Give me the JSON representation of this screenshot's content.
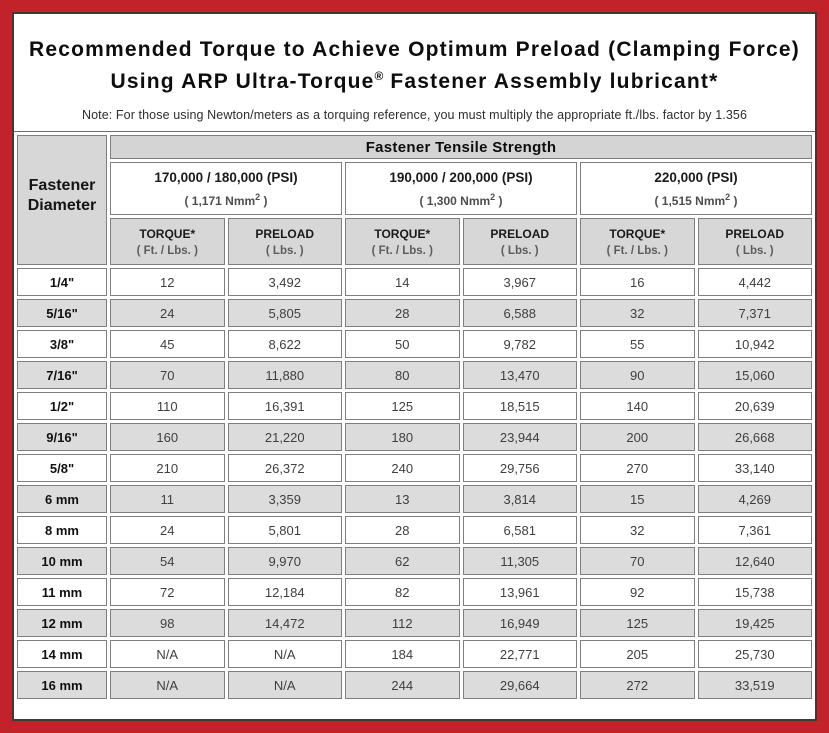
{
  "title": {
    "line1": "Recommended Torque to Achieve Optimum Preload (Clamping Force)",
    "line2_pre": "Using ARP Ultra-Torque",
    "line2_sup": "®",
    "line2_post": " Fastener Assembly lubricant*",
    "note": "Note: For those using Newton/meters as a torquing reference, you must multiply the appropriate ft./lbs. factor by 1.356"
  },
  "table": {
    "corner_label": "Fastener Diameter",
    "group_header": "Fastener Tensile Strength",
    "strength_columns": [
      {
        "psi": "170,000 / 180,000 (PSI)",
        "nmm_pre": "( 1,171 Nmm",
        "nmm_sup": "2",
        "nmm_post": " )"
      },
      {
        "psi": "190,000 / 200,000 (PSI)",
        "nmm_pre": "( 1,300 Nmm",
        "nmm_sup": "2",
        "nmm_post": " )"
      },
      {
        "psi": "220,000 (PSI)",
        "nmm_pre": "( 1,515 Nmm",
        "nmm_sup": "2",
        "nmm_post": " )"
      }
    ],
    "sub_headers": {
      "torque_label": "TORQUE*",
      "torque_unit": "( Ft. / Lbs. )",
      "preload_label": "PRELOAD",
      "preload_unit": "( Lbs. )"
    },
    "rows": [
      {
        "diameter": "1/4\"",
        "values": [
          "12",
          "3,492",
          "14",
          "3,967",
          "16",
          "4,442"
        ]
      },
      {
        "diameter": "5/16\"",
        "values": [
          "24",
          "5,805",
          "28",
          "6,588",
          "32",
          "7,371"
        ]
      },
      {
        "diameter": "3/8\"",
        "values": [
          "45",
          "8,622",
          "50",
          "9,782",
          "55",
          "10,942"
        ]
      },
      {
        "diameter": "7/16\"",
        "values": [
          "70",
          "11,880",
          "80",
          "13,470",
          "90",
          "15,060"
        ]
      },
      {
        "diameter": "1/2\"",
        "values": [
          "110",
          "16,391",
          "125",
          "18,515",
          "140",
          "20,639"
        ]
      },
      {
        "diameter": "9/16\"",
        "values": [
          "160",
          "21,220",
          "180",
          "23,944",
          "200",
          "26,668"
        ]
      },
      {
        "diameter": "5/8\"",
        "values": [
          "210",
          "26,372",
          "240",
          "29,756",
          "270",
          "33,140"
        ]
      },
      {
        "diameter": "6 mm",
        "values": [
          "11",
          "3,359",
          "13",
          "3,814",
          "15",
          "4,269"
        ]
      },
      {
        "diameter": "8 mm",
        "values": [
          "24",
          "5,801",
          "28",
          "6,581",
          "32",
          "7,361"
        ]
      },
      {
        "diameter": "10 mm",
        "values": [
          "54",
          "9,970",
          "62",
          "11,305",
          "70",
          "12,640"
        ]
      },
      {
        "diameter": "11 mm",
        "values": [
          "72",
          "12,184",
          "82",
          "13,961",
          "92",
          "15,738"
        ]
      },
      {
        "diameter": "12 mm",
        "values": [
          "98",
          "14,472",
          "112",
          "16,949",
          "125",
          "19,425"
        ]
      },
      {
        "diameter": "14 mm",
        "values": [
          "N/A",
          "N/A",
          "184",
          "22,771",
          "205",
          "25,730"
        ]
      },
      {
        "diameter": "16 mm",
        "values": [
          "N/A",
          "N/A",
          "244",
          "29,664",
          "272",
          "33,519"
        ]
      }
    ]
  },
  "colors": {
    "border_red": "#c2232a",
    "header_gray": "#d7d7d7",
    "row_alt_gray": "#dcdcdc",
    "cell_border": "#7f7f7f"
  }
}
